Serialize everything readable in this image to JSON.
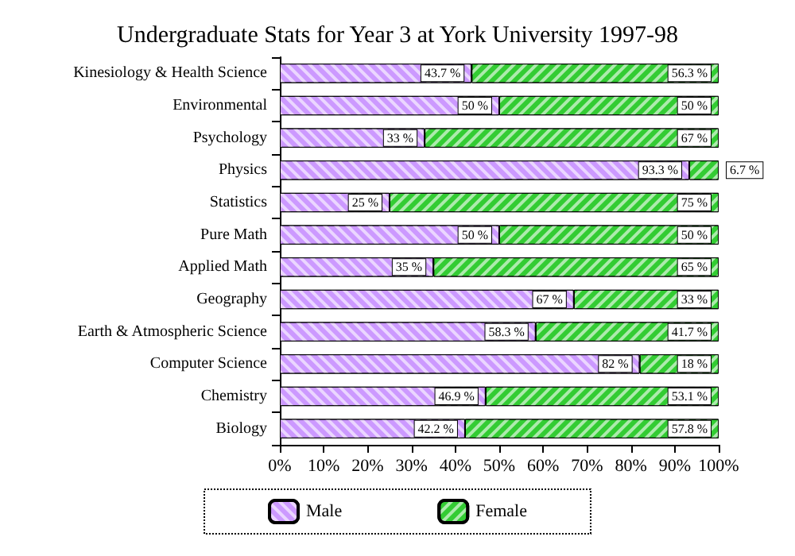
{
  "chart_data": {
    "type": "bar",
    "title": "Undergraduate Stats for Year 3 at York University 1997-98",
    "orientation": "horizontal",
    "stacked": true,
    "categories": [
      "Kinesiology & Health Science",
      "Environmental",
      "Psychology",
      "Physics",
      "Statistics",
      "Pure Math",
      "Applied Math",
      "Geography",
      "Earth & Atmospheric Science",
      "Computer Science",
      "Chemistry",
      "Biology"
    ],
    "series": [
      {
        "name": "Male",
        "color": "#cc99ff",
        "values": [
          43.7,
          50,
          33,
          93.3,
          25,
          50,
          35,
          67,
          58.3,
          82,
          46.9,
          42.2
        ],
        "value_labels": [
          "43.7 %",
          "50 %",
          "33 %",
          "93.3 %",
          "25 %",
          "50 %",
          "35 %",
          "67 %",
          "58.3 %",
          "82 %",
          "46.9 %",
          "42.2 %"
        ]
      },
      {
        "name": "Female",
        "color": "#33cc33",
        "values": [
          56.3,
          50,
          67,
          6.7,
          75,
          50,
          65,
          33,
          41.7,
          18,
          53.1,
          57.8
        ],
        "value_labels": [
          "56.3 %",
          "50 %",
          "67 %",
          "6.7 %",
          "75 %",
          "50 %",
          "65 %",
          "33 %",
          "41.7 %",
          "18 %",
          "53.1 %",
          "57.8 %"
        ]
      }
    ],
    "xlim": [
      0,
      100
    ],
    "xticks": [
      {
        "value": 0,
        "label": "0%"
      },
      {
        "value": 10,
        "label": "10%"
      },
      {
        "value": 20,
        "label": "20%"
      },
      {
        "value": 30,
        "label": "30%"
      },
      {
        "value": 40,
        "label": "40%"
      },
      {
        "value": 50,
        "label": "50%"
      },
      {
        "value": 60,
        "label": "60%"
      },
      {
        "value": 70,
        "label": "70%"
      },
      {
        "value": 80,
        "label": "80%"
      },
      {
        "value": 90,
        "label": "90%"
      },
      {
        "value": 100,
        "label": "100%"
      }
    ],
    "grid": false,
    "legend": "bottom"
  }
}
